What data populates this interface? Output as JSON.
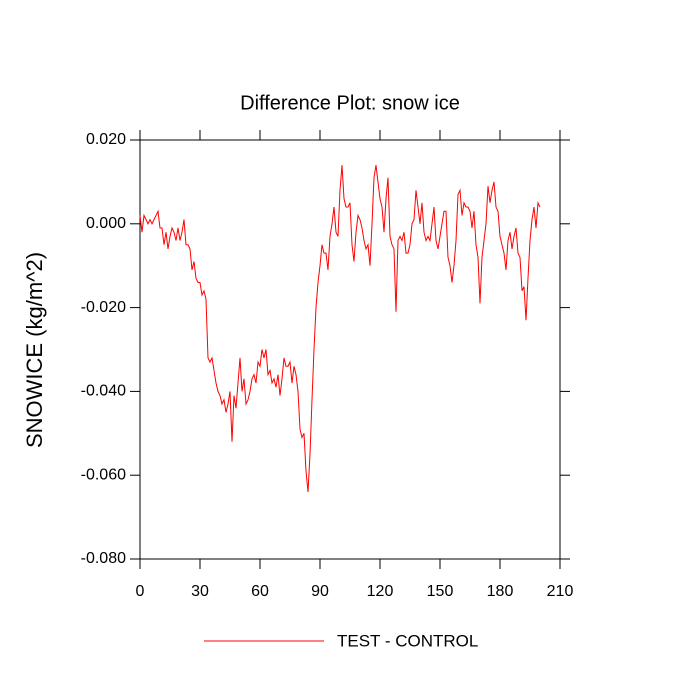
{
  "chart_data": {
    "type": "line",
    "title": "Difference Plot: snow ice",
    "y_label": "SNOWICE  (kg/m^2)",
    "x": [
      0,
      1,
      2,
      3,
      4,
      5,
      6,
      7,
      8,
      9,
      10,
      11,
      12,
      13,
      14,
      15,
      16,
      17,
      18,
      19,
      20,
      21,
      22,
      23,
      24,
      25,
      26,
      27,
      28,
      29,
      30,
      31,
      32,
      33,
      34,
      35,
      36,
      37,
      38,
      39,
      40,
      41,
      42,
      43,
      44,
      45,
      46,
      47,
      48,
      49,
      50,
      51,
      52,
      53,
      54,
      55,
      56,
      57,
      58,
      59,
      60,
      61,
      62,
      63,
      64,
      65,
      66,
      67,
      68,
      69,
      70,
      71,
      72,
      73,
      74,
      75,
      76,
      77,
      78,
      79,
      80,
      81,
      82,
      83,
      84,
      85,
      86,
      87,
      88,
      89,
      90,
      91,
      92,
      93,
      94,
      95,
      96,
      97,
      98,
      99,
      100,
      101,
      102,
      103,
      104,
      105,
      106,
      107,
      108,
      109,
      110,
      111,
      112,
      113,
      114,
      115,
      116,
      117,
      118,
      119,
      120,
      121,
      122,
      123,
      124,
      125,
      126,
      127,
      128,
      129,
      130,
      131,
      132,
      133,
      134,
      135,
      136,
      137,
      138,
      139,
      140,
      141,
      142,
      143,
      144,
      145,
      146,
      147,
      148,
      149,
      150,
      151,
      152,
      153,
      154,
      155,
      156,
      157,
      158,
      159,
      160,
      161,
      162,
      163,
      164,
      165,
      166,
      167,
      168,
      169,
      170,
      171,
      172,
      173,
      174,
      175,
      176,
      177,
      178,
      179,
      180,
      181,
      182,
      183,
      184,
      185,
      186,
      187,
      188,
      189,
      190,
      191,
      192,
      193,
      194,
      195,
      196,
      197,
      198,
      199,
      200
    ],
    "series": [
      {
        "name": "TEST - CONTROL",
        "color": "#ff0000",
        "values": [
          0.002,
          -0.002,
          0.002,
          0.001,
          0.0,
          0.001,
          0.0,
          0.001,
          0.002,
          0.003,
          -0.001,
          -0.001,
          -0.005,
          -0.002,
          -0.006,
          -0.003,
          -0.001,
          -0.002,
          -0.004,
          -0.001,
          -0.004,
          -0.002,
          0.001,
          -0.005,
          -0.005,
          -0.006,
          -0.011,
          -0.009,
          -0.013,
          -0.014,
          -0.014,
          -0.017,
          -0.016,
          -0.018,
          -0.032,
          -0.033,
          -0.032,
          -0.035,
          -0.038,
          -0.04,
          -0.041,
          -0.043,
          -0.042,
          -0.045,
          -0.043,
          -0.04,
          -0.052,
          -0.041,
          -0.044,
          -0.038,
          -0.032,
          -0.04,
          -0.037,
          -0.043,
          -0.042,
          -0.04,
          -0.037,
          -0.036,
          -0.038,
          -0.033,
          -0.034,
          -0.03,
          -0.032,
          -0.03,
          -0.036,
          -0.035,
          -0.038,
          -0.037,
          -0.039,
          -0.036,
          -0.041,
          -0.037,
          -0.032,
          -0.034,
          -0.034,
          -0.033,
          -0.038,
          -0.034,
          -0.036,
          -0.04,
          -0.049,
          -0.051,
          -0.05,
          -0.059,
          -0.064,
          -0.055,
          -0.042,
          -0.03,
          -0.02,
          -0.014,
          -0.01,
          -0.005,
          -0.007,
          -0.007,
          -0.011,
          -0.003,
          0.0,
          0.004,
          -0.002,
          -0.003,
          0.008,
          0.014,
          0.006,
          0.004,
          0.004,
          0.005,
          -0.005,
          -0.009,
          -0.002,
          0.002,
          0.001,
          -0.001,
          -0.004,
          -0.006,
          -0.005,
          -0.01,
          0.0,
          0.011,
          0.014,
          0.01,
          0.006,
          0.004,
          -0.002,
          0.006,
          0.011,
          -0.003,
          -0.005,
          -0.006,
          -0.021,
          -0.004,
          -0.003,
          -0.004,
          -0.002,
          -0.007,
          -0.007,
          -0.005,
          0.0,
          0.001,
          0.008,
          0.004,
          0.0,
          0.005,
          -0.002,
          -0.004,
          -0.003,
          -0.004,
          0.0,
          0.004,
          -0.004,
          -0.006,
          -0.003,
          0.0,
          0.003,
          0.003,
          -0.008,
          -0.01,
          -0.014,
          -0.01,
          -0.004,
          0.007,
          0.008,
          0.002,
          0.005,
          0.004,
          0.004,
          0.003,
          -0.001,
          0.003,
          -0.005,
          -0.008,
          -0.019,
          -0.008,
          -0.004,
          0.0,
          0.009,
          0.005,
          0.008,
          0.01,
          0.004,
          0.003,
          -0.003,
          -0.005,
          -0.007,
          -0.011,
          -0.004,
          -0.002,
          -0.006,
          -0.003,
          -0.001,
          -0.007,
          -0.008,
          -0.016,
          -0.015,
          -0.023,
          -0.013,
          -0.004,
          0.001,
          0.004,
          -0.001,
          0.005,
          0.004
        ]
      }
    ],
    "xlim": [
      0,
      210
    ],
    "xticks": [
      0,
      30,
      60,
      90,
      120,
      150,
      180,
      210
    ],
    "ylim": [
      -0.08,
      0.02
    ],
    "yticks": [
      {
        "value": -0.08,
        "label": "-0.080"
      },
      {
        "value": -0.06,
        "label": "-0.060"
      },
      {
        "value": -0.04,
        "label": "-0.040"
      },
      {
        "value": -0.02,
        "label": "-0.020"
      },
      {
        "value": 0.0,
        "label": "0.000"
      },
      {
        "value": 0.02,
        "label": "0.020"
      }
    ],
    "legend": "bottom"
  }
}
